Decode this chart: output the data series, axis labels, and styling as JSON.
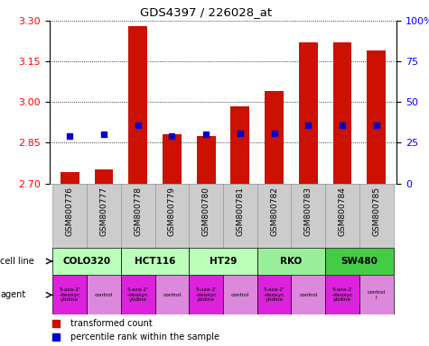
{
  "title": "GDS4397 / 226028_at",
  "samples": [
    "GSM800776",
    "GSM800777",
    "GSM800778",
    "GSM800779",
    "GSM800780",
    "GSM800781",
    "GSM800782",
    "GSM800783",
    "GSM800784",
    "GSM800785"
  ],
  "red_values": [
    2.74,
    2.75,
    3.28,
    2.88,
    2.875,
    2.985,
    3.04,
    3.22,
    3.22,
    3.19
  ],
  "blue_values": [
    2.875,
    2.88,
    2.915,
    2.875,
    2.88,
    2.885,
    2.885,
    2.915,
    2.915,
    2.915
  ],
  "ylim": [
    2.7,
    3.3
  ],
  "yticks_left": [
    2.7,
    2.85,
    3.0,
    3.15,
    3.3
  ],
  "yticks_right": [
    0,
    25,
    50,
    75,
    100
  ],
  "cell_lines": [
    {
      "label": "COLO320",
      "cols": [
        0,
        1
      ],
      "color": "#bbffbb"
    },
    {
      "label": "HCT116",
      "cols": [
        2,
        3
      ],
      "color": "#bbffbb"
    },
    {
      "label": "HT29",
      "cols": [
        4,
        5
      ],
      "color": "#bbffbb"
    },
    {
      "label": "RKO",
      "cols": [
        6,
        7
      ],
      "color": "#99ee99"
    },
    {
      "label": "SW480",
      "cols": [
        8,
        9
      ],
      "color": "#44cc44"
    }
  ],
  "agent_labels": [
    "5-aza-2'\n-deoxyc\nytidine",
    "control",
    "5-aza-2'\n-deoxyc\nytidine",
    "control",
    "5-aza-2'\n-deoxyc\nytidine",
    "control",
    "5-aza-2'\n-deoxyc\nytidine",
    "control",
    "5-aza-2'\n-deoxyc\nytidine",
    "control\nl"
  ],
  "agent_colors": [
    "#dd22dd",
    "#dd88dd",
    "#dd22dd",
    "#dd88dd",
    "#dd22dd",
    "#dd88dd",
    "#dd22dd",
    "#dd88dd",
    "#dd22dd",
    "#dd88dd"
  ],
  "bar_color": "#cc1100",
  "dot_color": "#0000cc",
  "bar_width": 0.55
}
